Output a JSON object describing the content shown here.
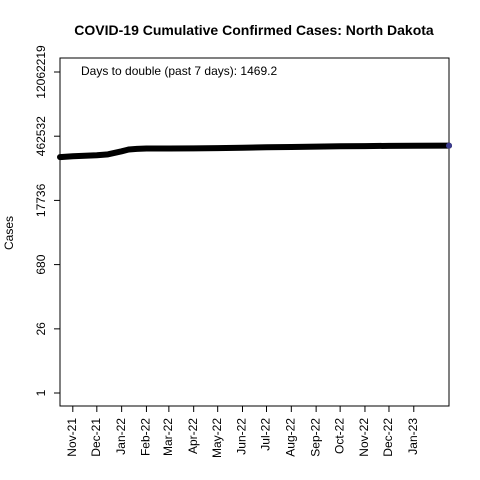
{
  "chart_data": {
    "type": "line",
    "title": "COVID-19 Cumulative Confirmed Cases: North Dakota",
    "xlabel": "",
    "ylabel": "Cases",
    "y_scale": "log",
    "y_ticks": [
      1,
      26,
      680,
      17736,
      462532,
      12062219
    ],
    "y_tick_labels": [
      "1",
      "26",
      "680",
      "17736",
      "462532",
      "12062219"
    ],
    "x_tick_labels": [
      "Nov-21",
      "Dec-21",
      "Jan-22",
      "Feb-22",
      "Mar-22",
      "Apr-22",
      "May-22",
      "Jun-22",
      "Jul-22",
      "Aug-22",
      "Sep-22",
      "Oct-22",
      "Nov-22",
      "Dec-22",
      "Jan-23"
    ],
    "x_tick_dates": [
      "2021-11-01",
      "2021-12-01",
      "2022-01-01",
      "2022-02-01",
      "2022-03-01",
      "2022-04-01",
      "2022-05-01",
      "2022-06-01",
      "2022-07-01",
      "2022-08-01",
      "2022-09-01",
      "2022-10-01",
      "2022-11-01",
      "2022-12-01",
      "2023-01-01"
    ],
    "xlim": [
      "2021-10-16",
      "2023-02-14"
    ],
    "ylim": [
      0.9,
      20000000
    ],
    "grid": false,
    "annotation": "Days to double (past 7 days): 1469.2",
    "series": [
      {
        "color": "#000000",
        "end_marker_color": "#3b3b8f",
        "x": [
          "2021-10-16",
          "2021-11-01",
          "2021-12-01",
          "2021-12-15",
          "2022-01-01",
          "2022-01-10",
          "2022-01-20",
          "2022-02-01",
          "2022-03-01",
          "2022-04-01",
          "2022-05-01",
          "2022-06-01",
          "2022-07-01",
          "2022-08-01",
          "2022-09-01",
          "2022-10-01",
          "2022-11-01",
          "2022-12-01",
          "2023-01-01",
          "2023-02-14"
        ],
        "values": [
          160000,
          167000,
          176000,
          184000,
          215000,
          236000,
          243000,
          247000,
          248000,
          249000,
          252000,
          257000,
          263000,
          268000,
          273000,
          277000,
          280000,
          283000,
          285000,
          287000
        ]
      }
    ]
  }
}
